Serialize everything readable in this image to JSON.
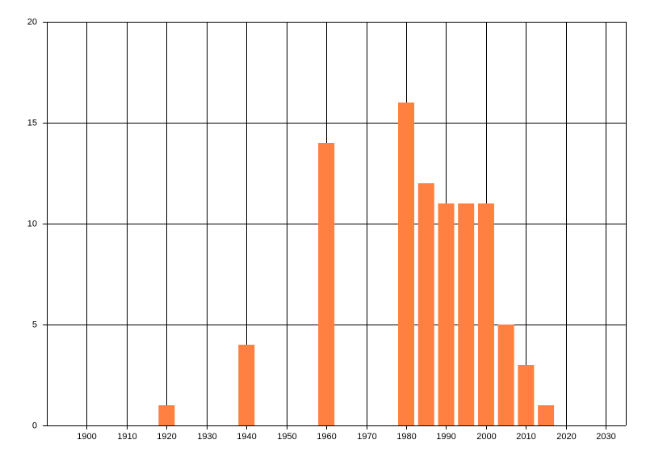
{
  "chart_data": {
    "type": "bar",
    "x": [
      1920,
      1940,
      1960,
      1980,
      1985,
      1990,
      1995,
      2000,
      2005,
      2010,
      2015
    ],
    "values": [
      1,
      4,
      14,
      16,
      12,
      11,
      11,
      11,
      5,
      3,
      1
    ],
    "color": "#ff8040",
    "xlim": [
      1890,
      2035
    ],
    "xticks": [
      1900,
      1910,
      1920,
      1930,
      1940,
      1950,
      1960,
      1970,
      1980,
      1990,
      2000,
      2010,
      2020,
      2030
    ],
    "ylim": [
      0,
      20
    ],
    "yticks": [
      0,
      5,
      10,
      15,
      20
    ],
    "grid": true
  }
}
